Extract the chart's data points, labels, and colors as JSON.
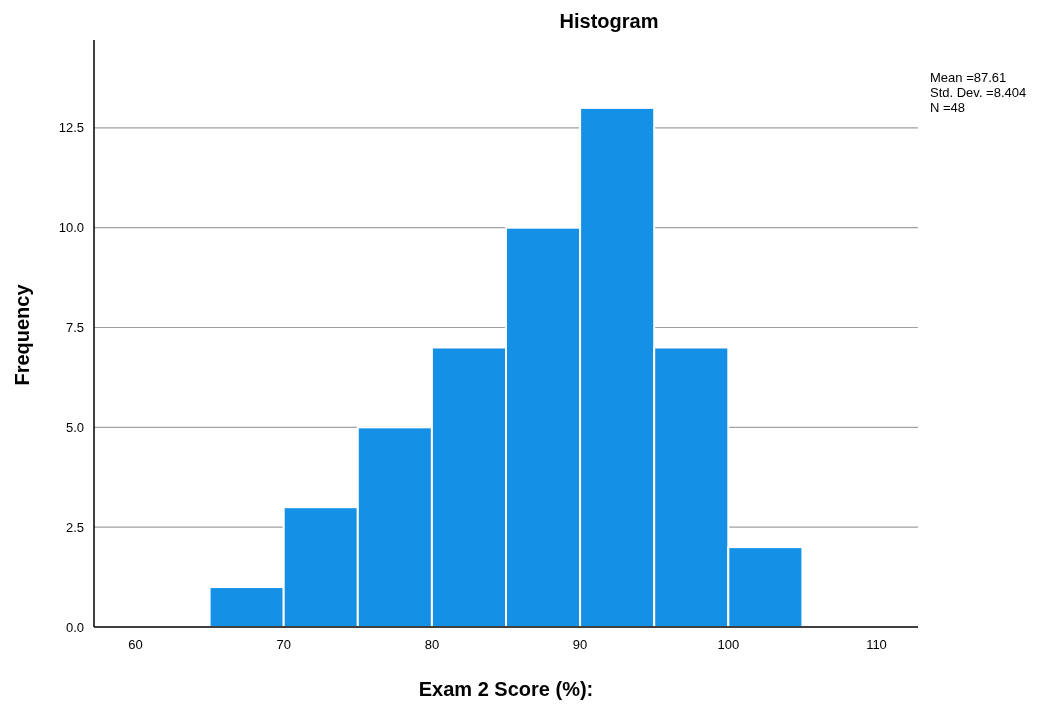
{
  "chart_data": {
    "type": "histogram",
    "title": "Histogram",
    "xlabel": "Exam 2 Score (%):",
    "ylabel": "Frequency",
    "bins": [
      65,
      70,
      75,
      80,
      85,
      90,
      95,
      100,
      105
    ],
    "values": [
      1,
      3,
      5,
      7,
      10,
      13,
      7,
      2
    ],
    "color": "#1490e6",
    "xlim": [
      57.2,
      112.8
    ],
    "xticks": [
      60,
      70,
      80,
      90,
      100,
      110
    ],
    "ylim": [
      0,
      14.7
    ],
    "yticks": [
      {
        "value": 0,
        "label": "0.0"
      },
      {
        "value": 2.5,
        "label": "2.5"
      },
      {
        "value": 5,
        "label": "5.0"
      },
      {
        "value": 7.5,
        "label": "7.5"
      },
      {
        "value": 10,
        "label": "10.0"
      },
      {
        "value": 12.5,
        "label": "12.5"
      }
    ],
    "grid": "y",
    "annotations": [
      "Mean =87.61",
      "Std. Dev. =8.404",
      "N =48"
    ]
  }
}
